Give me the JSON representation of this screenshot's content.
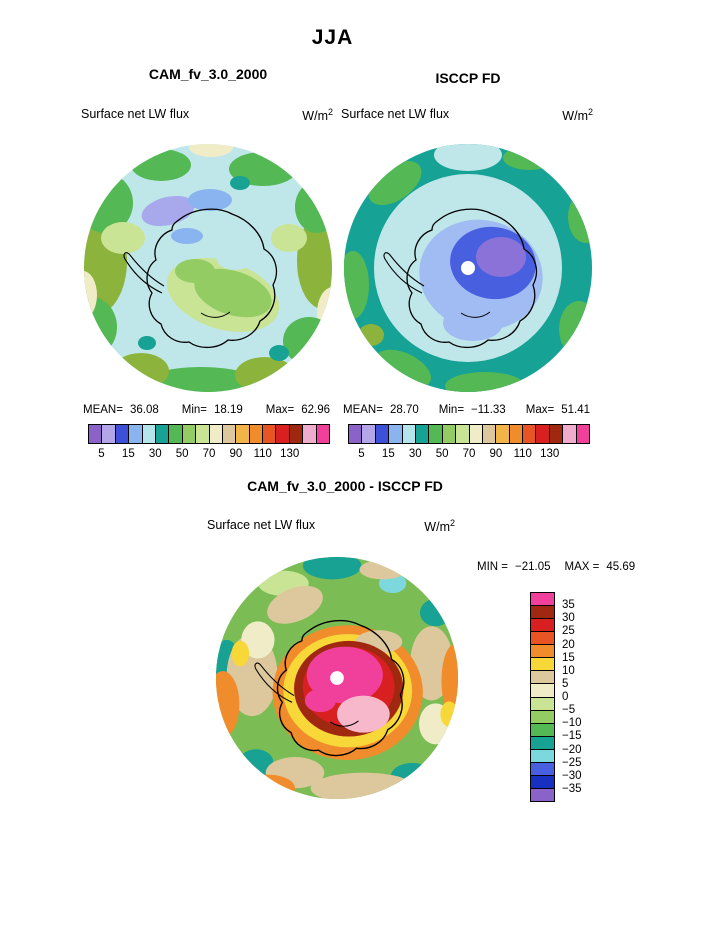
{
  "header": {
    "title": "JJA"
  },
  "panels": {
    "cam": {
      "title": "CAM_fv_3.0_2000",
      "field": "Surface net LW flux",
      "units_base": "W/m",
      "units_exp": "2",
      "stats": {
        "mean_label": "MEAN=",
        "mean_value": "36.08",
        "min_label": "Min=",
        "min_value": "18.19",
        "max_label": "Max=",
        "max_value": "62.96"
      }
    },
    "isccp": {
      "title": "ISCCP FD",
      "field": "Surface net LW flux",
      "units_base": "W/m",
      "units_exp": "2",
      "stats": {
        "mean_label": "MEAN=",
        "mean_value": "28.70",
        "min_label": "Min=",
        "min_value": "−11.33",
        "max_label": "Max=",
        "max_value": "51.41"
      }
    },
    "diff": {
      "title": "CAM_fv_3.0_2000 - ISCCP FD",
      "field": "Surface net LW flux",
      "units_base": "W/m",
      "units_exp": "2",
      "minmax": {
        "min_label": "MIN =",
        "min_value": "−21.05",
        "max_label": "MAX =",
        "max_value": "45.69"
      }
    }
  },
  "chart_data": [
    {
      "type": "heatmap",
      "projection": "south-polar-stereographic",
      "panel": "top-left",
      "title": "CAM_fv_3.0_2000",
      "season": "JJA",
      "variable": "Surface net LW flux",
      "units": "W/m2",
      "stats": {
        "mean": 36.08,
        "min": 18.19,
        "max": 62.96
      },
      "colorbar": {
        "orientation": "horizontal",
        "colors": [
          "#8a62c8",
          "#b4a4e8",
          "#3c50d8",
          "#8ab4f0",
          "#b4e4ec",
          "#18a294",
          "#54b854",
          "#94cc64",
          "#c8e494",
          "#f0ecc8",
          "#dcc89c",
          "#f0b448",
          "#f08c2c",
          "#e85424",
          "#d82020",
          "#a02810",
          "#f0accc",
          "#f0409c"
        ],
        "ticks": [
          "5",
          "15",
          "30",
          "50",
          "70",
          "90",
          "110",
          "130"
        ],
        "levels": [
          5,
          15,
          30,
          50,
          70,
          90,
          110,
          130
        ]
      }
    },
    {
      "type": "heatmap",
      "projection": "south-polar-stereographic",
      "panel": "top-right",
      "title": "ISCCP FD",
      "season": "JJA",
      "variable": "Surface net LW flux",
      "units": "W/m2",
      "stats": {
        "mean": 28.7,
        "min": -11.33,
        "max": 51.41
      },
      "colorbar": {
        "orientation": "horizontal",
        "colors": [
          "#8a62c8",
          "#b4a4e8",
          "#3c50d8",
          "#8ab4f0",
          "#b4e4ec",
          "#18a294",
          "#54b854",
          "#94cc64",
          "#c8e494",
          "#f0ecc8",
          "#dcc89c",
          "#f0b448",
          "#f08c2c",
          "#e85424",
          "#d82020",
          "#a02810",
          "#f0accc",
          "#f0409c"
        ],
        "ticks": [
          "5",
          "15",
          "30",
          "50",
          "70",
          "90",
          "110",
          "130"
        ],
        "levels": [
          5,
          15,
          30,
          50,
          70,
          90,
          110,
          130
        ]
      }
    },
    {
      "type": "heatmap",
      "projection": "south-polar-stereographic",
      "panel": "bottom",
      "title": "CAM_fv_3.0_2000 - ISCCP FD",
      "season": "JJA",
      "variable": "Surface net LW flux",
      "units": "W/m2",
      "stats": {
        "min": -21.05,
        "max": 45.69
      },
      "colorbar": {
        "orientation": "vertical",
        "colors": [
          "#f0409c",
          "#a02810",
          "#d82020",
          "#e85424",
          "#f08c2c",
          "#f8d838",
          "#dcc89c",
          "#f0ecc8",
          "#c8e494",
          "#94cc64",
          "#54b854",
          "#18a294",
          "#7cd8dc",
          "#4860e0",
          "#1830c0",
          "#8a62c8"
        ],
        "ticks": [
          "35",
          "30",
          "25",
          "20",
          "15",
          "10",
          "5",
          "0",
          "−5",
          "−10",
          "−15",
          "−20",
          "−25",
          "−30",
          "−35"
        ],
        "levels": [
          35,
          30,
          25,
          20,
          15,
          10,
          5,
          0,
          -5,
          -10,
          -15,
          -20,
          -25,
          -30,
          -35
        ]
      }
    }
  ]
}
